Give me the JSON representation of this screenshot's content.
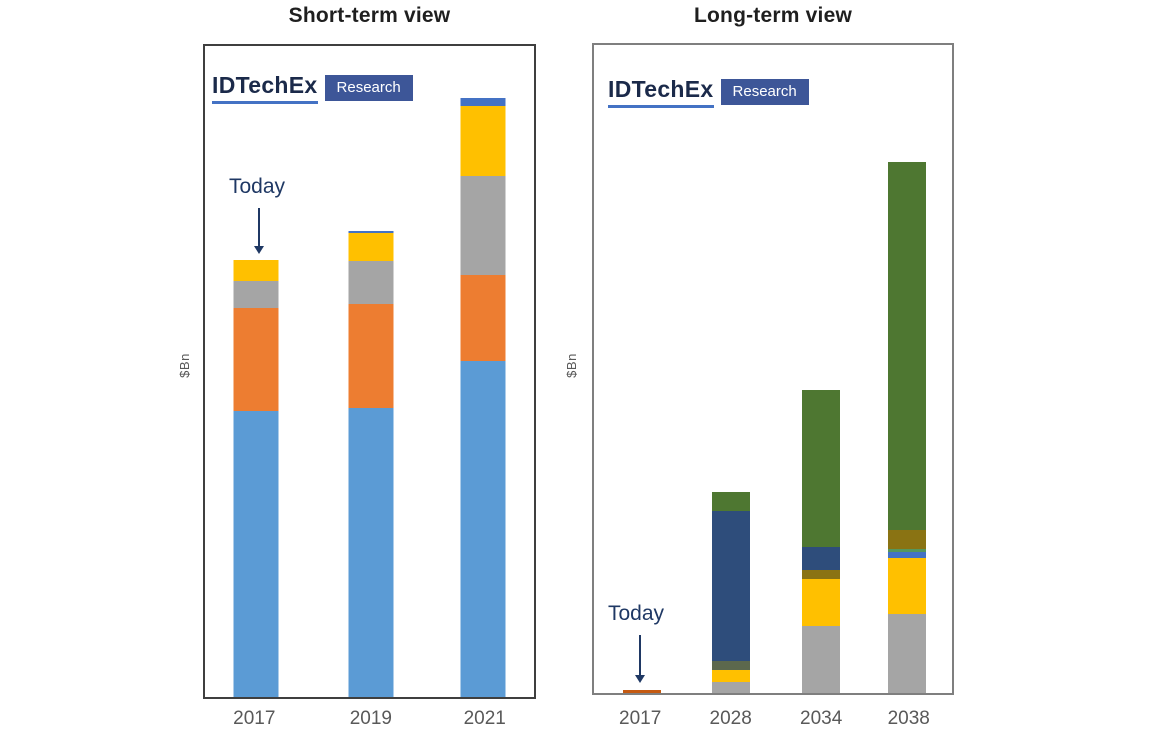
{
  "style_colors": {
    "logo_wordmark": "#1B2A4A",
    "logo_underline": "#4472C4",
    "logo_badge_bg": "#3D5698",
    "logo_badge_text": "#FFFFFF",
    "annotation_navy": "#1F3864",
    "axis_text_gray": "#595959",
    "left_box_border": "#3F3F3F",
    "right_box_border": "#7F7F7F"
  },
  "chart_data": [
    {
      "type": "bar",
      "stacked": true,
      "title": "Short-term view",
      "ylabel": "$Bn",
      "categories": [
        "2017",
        "2019",
        "2021"
      ],
      "series": [
        {
          "name": "light-blue",
          "color": "#5B9BD5",
          "values": [
            286,
            289,
            336
          ]
        },
        {
          "name": "orange",
          "color": "#ED7D31",
          "values": [
            103,
            104,
            86
          ]
        },
        {
          "name": "gray",
          "color": "#A5A5A5",
          "values": [
            27,
            43,
            99
          ]
        },
        {
          "name": "gold",
          "color": "#FFC000",
          "values": [
            21,
            28,
            70
          ]
        },
        {
          "name": "medium-blue",
          "color": "#4472C4",
          "values": [
            0,
            2,
            8
          ]
        }
      ],
      "annotations": [
        {
          "label": "Today",
          "category": "2017"
        }
      ],
      "logo": {
        "brand": "IDTechEx",
        "badge": "Research"
      },
      "legend": "none",
      "grid": "off",
      "note": "no numeric y-axis shown; series values are bar-segment heights in screen pixels"
    },
    {
      "type": "bar",
      "stacked": true,
      "title": "Long-term view",
      "ylabel": "$Bn",
      "categories": [
        "2017",
        "2028",
        "2034",
        "2038"
      ],
      "series": [
        {
          "name": "gray",
          "color": "#A5A5A5",
          "values": [
            0,
            11,
            67,
            79
          ]
        },
        {
          "name": "gold",
          "color": "#FFC000",
          "values": [
            0,
            12,
            47,
            56
          ]
        },
        {
          "name": "dark-orange",
          "color": "#C55A11",
          "values": [
            3,
            0,
            0,
            0
          ]
        },
        {
          "name": "medium-blue",
          "color": "#4472C4",
          "values": [
            0,
            0,
            0,
            6
          ]
        },
        {
          "name": "teal-green",
          "color": "#55975D",
          "values": [
            0,
            0,
            0,
            3
          ]
        },
        {
          "name": "olive-gray",
          "color": "#5C684D",
          "values": [
            0,
            9,
            0,
            0
          ]
        },
        {
          "name": "dark-gold",
          "color": "#8A7313",
          "values": [
            0,
            0,
            9,
            19
          ]
        },
        {
          "name": "navy",
          "color": "#2E4D7B",
          "values": [
            0,
            150,
            23,
            0
          ]
        },
        {
          "name": "green",
          "color": "#4E7731",
          "values": [
            0,
            19,
            157,
            368
          ]
        }
      ],
      "annotations": [
        {
          "label": "Today",
          "category": "2017"
        }
      ],
      "logo": {
        "brand": "IDTechEx",
        "badge": "Research"
      },
      "legend": "none",
      "grid": "off",
      "note": "no numeric y-axis shown; series values are bar-segment heights in screen pixels"
    }
  ]
}
